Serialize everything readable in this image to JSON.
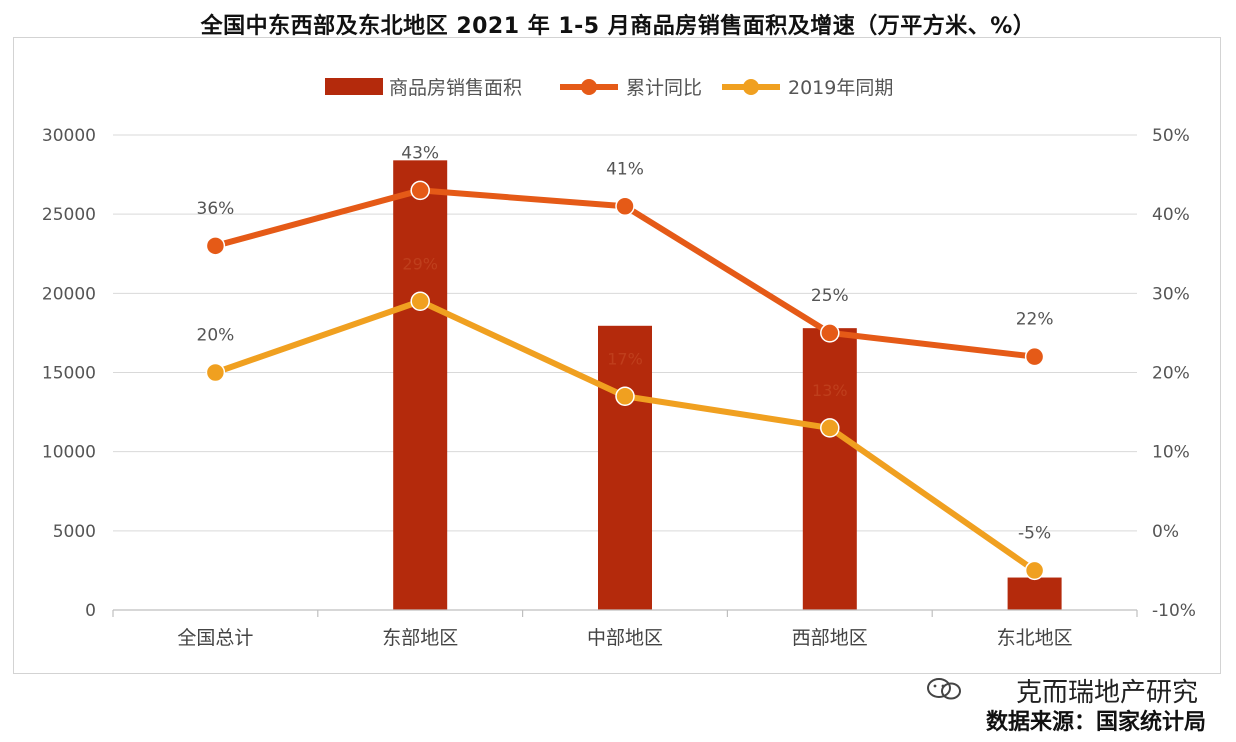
{
  "title": "全国中东西部及东北地区 2021 年 1-5 月商品房销售面积及增速（万平方米、%）",
  "watermark": {
    "line1": "克而瑞地产研究",
    "line2": "数据来源：国家统计局",
    "icon": "wechat-icon"
  },
  "colors": {
    "bar": "#b42a0c",
    "cumulative_line": "#e55a17",
    "line_2019": "#f0a020",
    "grid": "#d9d9d9",
    "axis": "#bfbfbf"
  },
  "chart_data": {
    "type": "bar",
    "categories": [
      "全国总计",
      "东部地区",
      "中部地区",
      "西部地区",
      "东北地区"
    ],
    "series": [
      {
        "name": "商品房销售面积",
        "type": "bar",
        "axis": "left",
        "values": [
          null,
          28400,
          17950,
          17800,
          2050
        ]
      },
      {
        "name": "累计同比",
        "type": "line",
        "axis": "right",
        "values": [
          36,
          43,
          41,
          25,
          22
        ],
        "labels": [
          "36%",
          "43%",
          "41%",
          "25%",
          "22%"
        ]
      },
      {
        "name": "2019年同期",
        "type": "line",
        "axis": "right",
        "values": [
          20,
          29,
          17,
          13,
          -5
        ],
        "labels": [
          "20%",
          "29%",
          "17%",
          "13%",
          "-5%"
        ]
      }
    ],
    "y_left": {
      "min": 0,
      "max": 30000,
      "ticks": [
        "0",
        "5000",
        "10000",
        "15000",
        "20000",
        "25000",
        "30000"
      ]
    },
    "y_right": {
      "min": -10,
      "max": 50,
      "ticks": [
        "-10%",
        "0%",
        "10%",
        "20%",
        "30%",
        "40%",
        "50%"
      ]
    },
    "legend_position": "top",
    "grid": true
  }
}
